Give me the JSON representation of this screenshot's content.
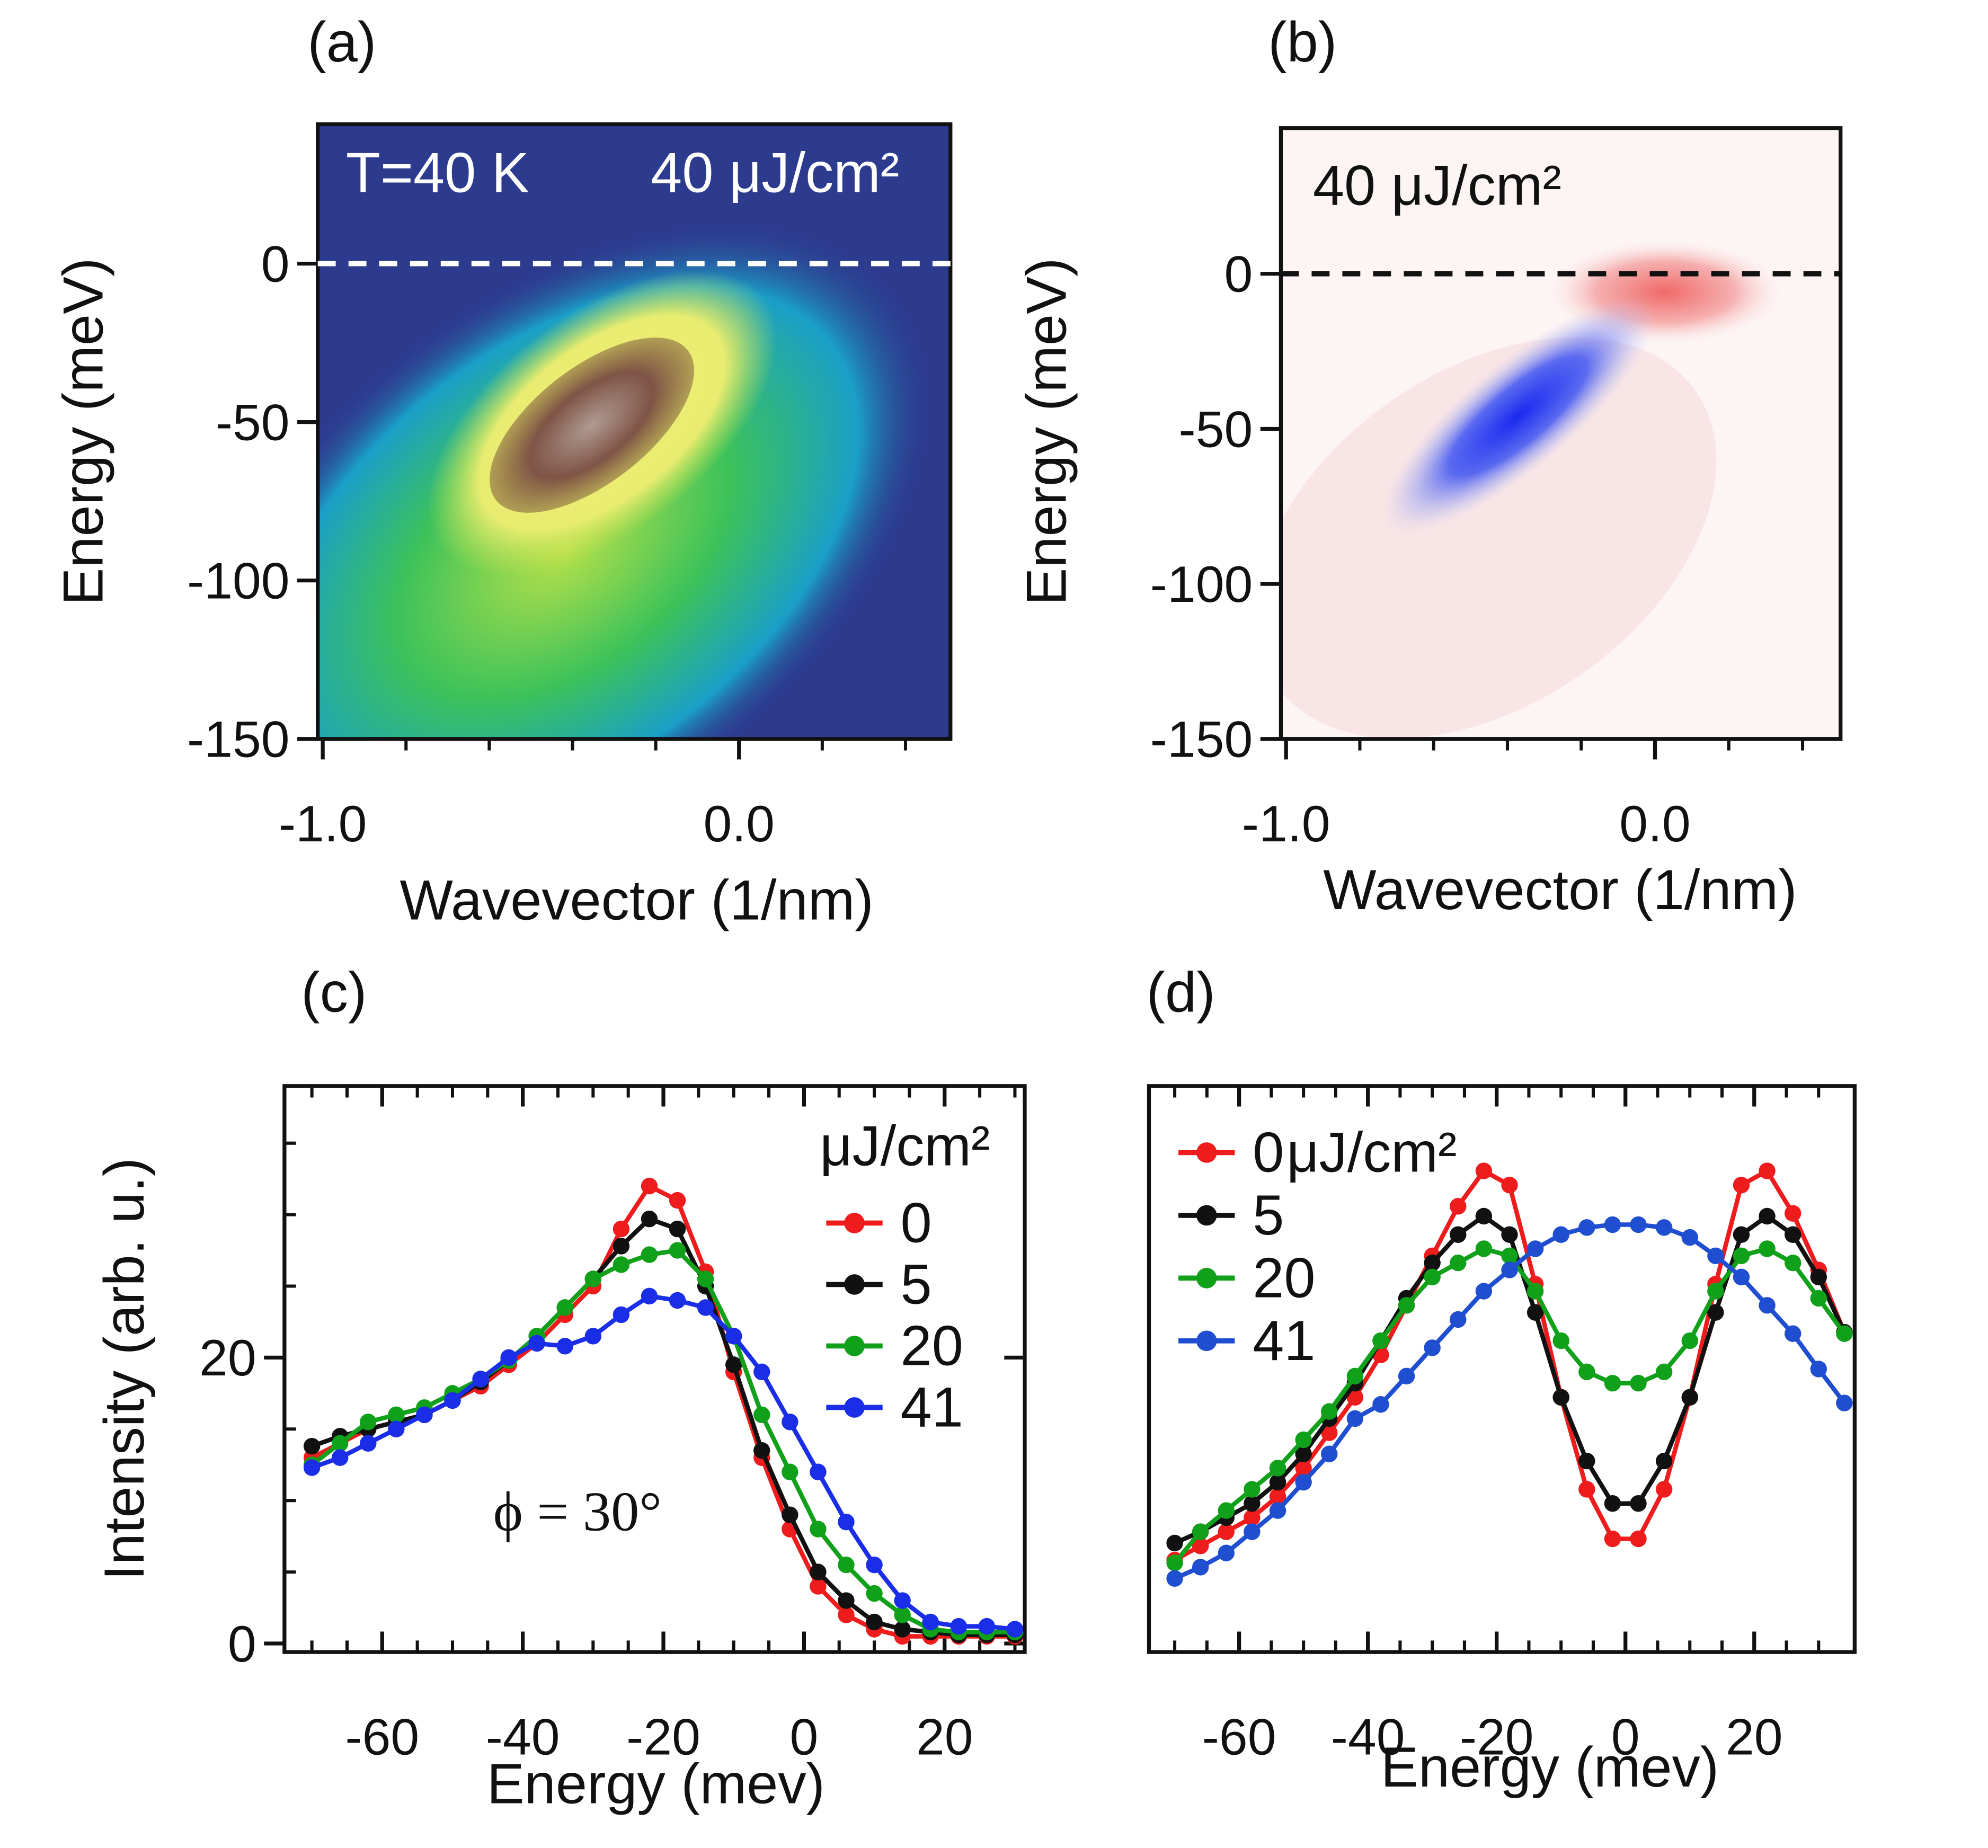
{
  "chart_data": [
    {
      "type": "heatmap",
      "panel_label": "(a)",
      "xlabel": "Wavevector (1/nm)",
      "ylabel": "Energy (meV)",
      "annotations": [
        "T=40 K",
        "40 μJ/cm²"
      ],
      "annotation_color": "#ffffff",
      "xlim": [
        -1.012,
        0.508
      ],
      "ylim": [
        -150,
        44
      ],
      "xticks": [
        {
          "value": -1,
          "label": "-1.0"
        },
        {
          "value": 0,
          "label": "0.0"
        }
      ],
      "xticks_minor": [
        -0.8,
        -0.6,
        -0.4,
        -0.2,
        0.2,
        0.4
      ],
      "yticks": [
        -150,
        -100,
        -50,
        0
      ],
      "hline": 0,
      "hline_color": "#ffffff"
    },
    {
      "type": "heatmap",
      "panel_label": "(b)",
      "xlabel": "Wavevector (1/nm)",
      "ylabel": "Energy (meV)",
      "annotations": [
        "40 μJ/cm²"
      ],
      "annotation_color": "#111111",
      "xlim": [
        -1.014,
        0.503
      ],
      "ylim": [
        -150,
        47
      ],
      "xticks": [
        {
          "value": -1,
          "label": "-1.0"
        },
        {
          "value": 0,
          "label": "0.0"
        }
      ],
      "xticks_minor": [
        -0.8,
        -0.6,
        -0.4,
        -0.2,
        0.2,
        0.4
      ],
      "yticks": [
        -150,
        -100,
        -50,
        0
      ],
      "hline": 0,
      "hline_color": "#111111"
    },
    {
      "type": "line",
      "panel_label": "(c)",
      "xlabel": "Energy (mev)",
      "ylabel": "Intensity (arb. u.)",
      "annotations": [
        "ϕ = 30°"
      ],
      "legend_title": "μJ/cm²",
      "xlim": [
        -73.9,
        31.4
      ],
      "ylim": [
        -0.6,
        39
      ],
      "xticks": [
        -60,
        -40,
        -20,
        0,
        20
      ],
      "xticks_minor": [
        -70,
        -65,
        -55,
        -50,
        -45,
        -35,
        -30,
        -25,
        -15,
        -10,
        -5,
        5,
        10,
        15,
        25,
        30
      ],
      "yticks": [
        0,
        20
      ],
      "yticks_minor": [
        5,
        10,
        15,
        25,
        30,
        35
      ],
      "x": [
        -70,
        -66,
        -62,
        -58,
        -54,
        -50,
        -46,
        -42,
        -38,
        -34,
        -30,
        -26,
        -22,
        -18,
        -14,
        -10,
        -6,
        -2,
        2,
        6,
        10,
        14,
        18,
        22,
        26,
        30
      ],
      "series": [
        {
          "name": "0",
          "color": "#ee1c1c",
          "values": [
            13,
            14,
            15,
            15.5,
            16,
            17,
            18,
            19.5,
            21,
            23,
            25,
            29,
            32,
            31,
            26,
            19,
            13,
            8,
            4,
            2,
            1,
            0.5,
            0.5,
            0.5,
            0.5,
            0.5
          ]
        },
        {
          "name": "5",
          "color": "#111111",
          "values": [
            13.8,
            14.5,
            15,
            15.5,
            16,
            17,
            18.3,
            19.8,
            21.5,
            23.5,
            25.5,
            27.8,
            29.7,
            29,
            25,
            19.5,
            13.5,
            9,
            5,
            3,
            1.5,
            1,
            0.8,
            0.6,
            0.6,
            0.6
          ]
        },
        {
          "name": "20",
          "color": "#11a01a",
          "values": [
            12.5,
            14,
            15.5,
            16,
            16.5,
            17.5,
            18.5,
            19.8,
            21.5,
            23.5,
            25.5,
            26.5,
            27.2,
            27.5,
            25.5,
            21.5,
            16,
            12,
            8,
            5.5,
            3.5,
            2,
            1,
            0.8,
            0.8,
            0.8
          ]
        },
        {
          "name": "41",
          "color": "#1a2ee8",
          "values": [
            12.3,
            13,
            14,
            15,
            16,
            17,
            18.5,
            20,
            21,
            20.8,
            21.5,
            23,
            24.3,
            24,
            23.5,
            21.5,
            19,
            15.5,
            12,
            8.5,
            5.5,
            3,
            1.5,
            1.2,
            1.2,
            1
          ]
        }
      ]
    },
    {
      "type": "line",
      "panel_label": "(d)",
      "xlabel": "Energy (mev)",
      "legend_unit": "μJ/cm²",
      "xlim": [
        -74,
        35.6
      ],
      "ylim": [
        0,
        40
      ],
      "xticks": [
        -60,
        -40,
        -20,
        0,
        20
      ],
      "xticks_minor": [
        -70,
        -65,
        -55,
        -50,
        -45,
        -35,
        -30,
        -25,
        -15,
        -10,
        -5,
        5,
        10,
        15,
        25,
        30
      ],
      "x": [
        -70,
        -66,
        -62,
        -58,
        -54,
        -50,
        -46,
        -42,
        -38,
        -34,
        -30,
        -26,
        -22,
        -18,
        -14,
        -10,
        -6,
        -2,
        2,
        6,
        10,
        14,
        18,
        22,
        26,
        30,
        34
      ],
      "series": [
        {
          "name": "0",
          "color": "#ee1c1c",
          "values": [
            6.5,
            7.5,
            8.5,
            9.5,
            11,
            13,
            15.5,
            18,
            21,
            24.5,
            28,
            31.5,
            34,
            33,
            26,
            18,
            11.5,
            8,
            8,
            11.5,
            18,
            26,
            33,
            34,
            31,
            27,
            22.6
          ]
        },
        {
          "name": "5",
          "color": "#111111",
          "values": [
            7.7,
            8.5,
            9.5,
            10.5,
            12,
            14,
            16.5,
            19,
            22,
            25,
            27.5,
            29.5,
            30.8,
            29.5,
            24,
            18,
            13.5,
            10.5,
            10.5,
            13.5,
            18,
            24,
            29.5,
            30.8,
            29.5,
            26.5,
            22.6
          ]
        },
        {
          "name": "20",
          "color": "#11a01a",
          "values": [
            6.3,
            8.5,
            10,
            11.5,
            13,
            15,
            17,
            19.5,
            22,
            24.5,
            26.5,
            27.5,
            28.5,
            28,
            25.5,
            22,
            19.8,
            19,
            19,
            19.8,
            22,
            25.5,
            28,
            28.5,
            27.5,
            25,
            22.5
          ]
        },
        {
          "name": "41",
          "color": "#1f4fd0",
          "values": [
            5.2,
            6,
            7,
            8.5,
            10,
            12,
            14,
            16.5,
            17.5,
            19.5,
            21.5,
            23.5,
            25.5,
            27,
            28.5,
            29.5,
            30,
            30.2,
            30.2,
            30,
            29.3,
            28,
            26.5,
            24.5,
            22.5,
            20,
            17.6
          ]
        }
      ]
    }
  ]
}
